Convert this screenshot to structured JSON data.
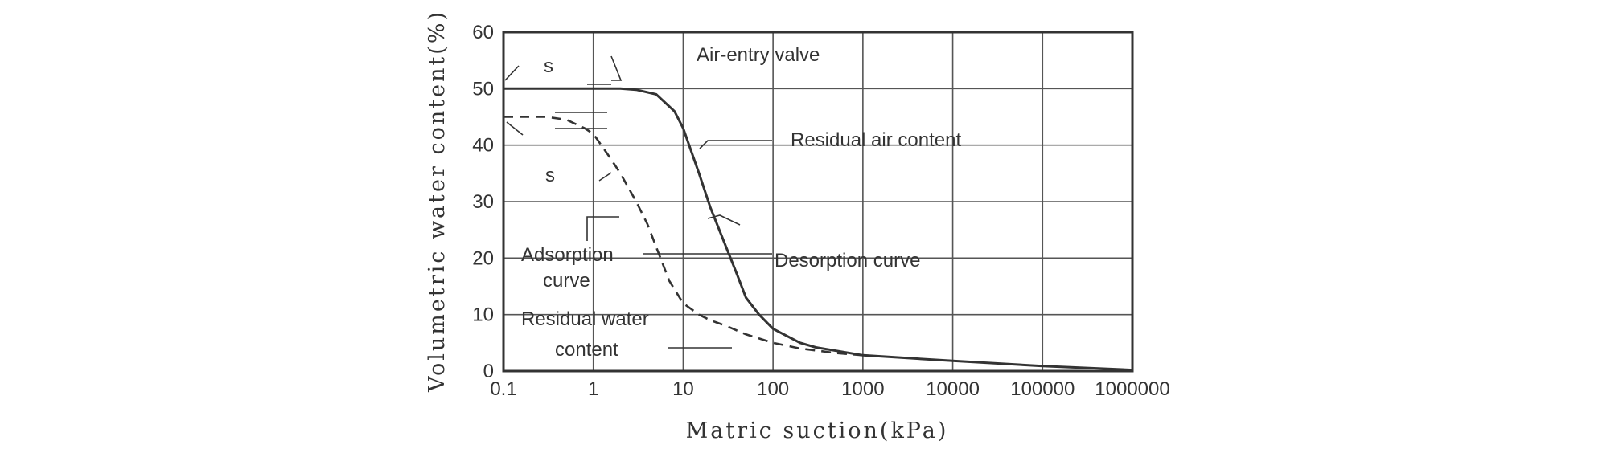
{
  "chart_data": {
    "type": "line",
    "xlabel": "Matric suction(kPa)",
    "ylabel": "Volumetric water content(%)",
    "xscale": "log",
    "xlim": [
      0.1,
      1000000
    ],
    "ylim": [
      0,
      60
    ],
    "grid": true,
    "x_ticks": [
      "0.1",
      "1",
      "10",
      "100",
      "1000",
      "10000",
      "100000",
      "1000000"
    ],
    "y_ticks": [
      "0",
      "10",
      "20",
      "30",
      "40",
      "50",
      "60"
    ],
    "series": [
      {
        "name": "Desorption curve",
        "style": "solid",
        "color": "#333333",
        "x": [
          0.1,
          1,
          2,
          3,
          5,
          8,
          10,
          15,
          20,
          30,
          40,
          50,
          70,
          100,
          200,
          300,
          1000,
          10000,
          100000,
          1000000
        ],
        "y": [
          50,
          50,
          50,
          49.8,
          49,
          46,
          43,
          35,
          29,
          22,
          17,
          13,
          10,
          7.5,
          5,
          4.2,
          2.8,
          1.8,
          0.9,
          0.2
        ]
      },
      {
        "name": "Adsorption curve",
        "style": "dashed",
        "color": "#333333",
        "x": [
          0.1,
          0.3,
          0.5,
          0.8,
          1,
          1.5,
          2,
          3,
          4,
          5,
          7,
          10,
          15,
          20,
          30,
          50,
          100,
          200,
          500,
          1000
        ],
        "y": [
          45,
          45,
          44.5,
          43,
          42,
          38,
          35,
          30,
          26,
          22,
          16,
          12,
          10,
          9,
          8,
          6.5,
          5,
          4,
          3.2,
          2.8
        ]
      }
    ],
    "annotations": {
      "air_entry": "Air-entry valve",
      "residual_air": "Residual air content",
      "desorption": "Desorption curve",
      "adsorption_line1": "Adsorption",
      "adsorption_line2": "curve",
      "residual_water_line1": "Residual water",
      "residual_water_line2": "content",
      "theta_s_top": "s",
      "theta_s_bottom": "s"
    }
  }
}
